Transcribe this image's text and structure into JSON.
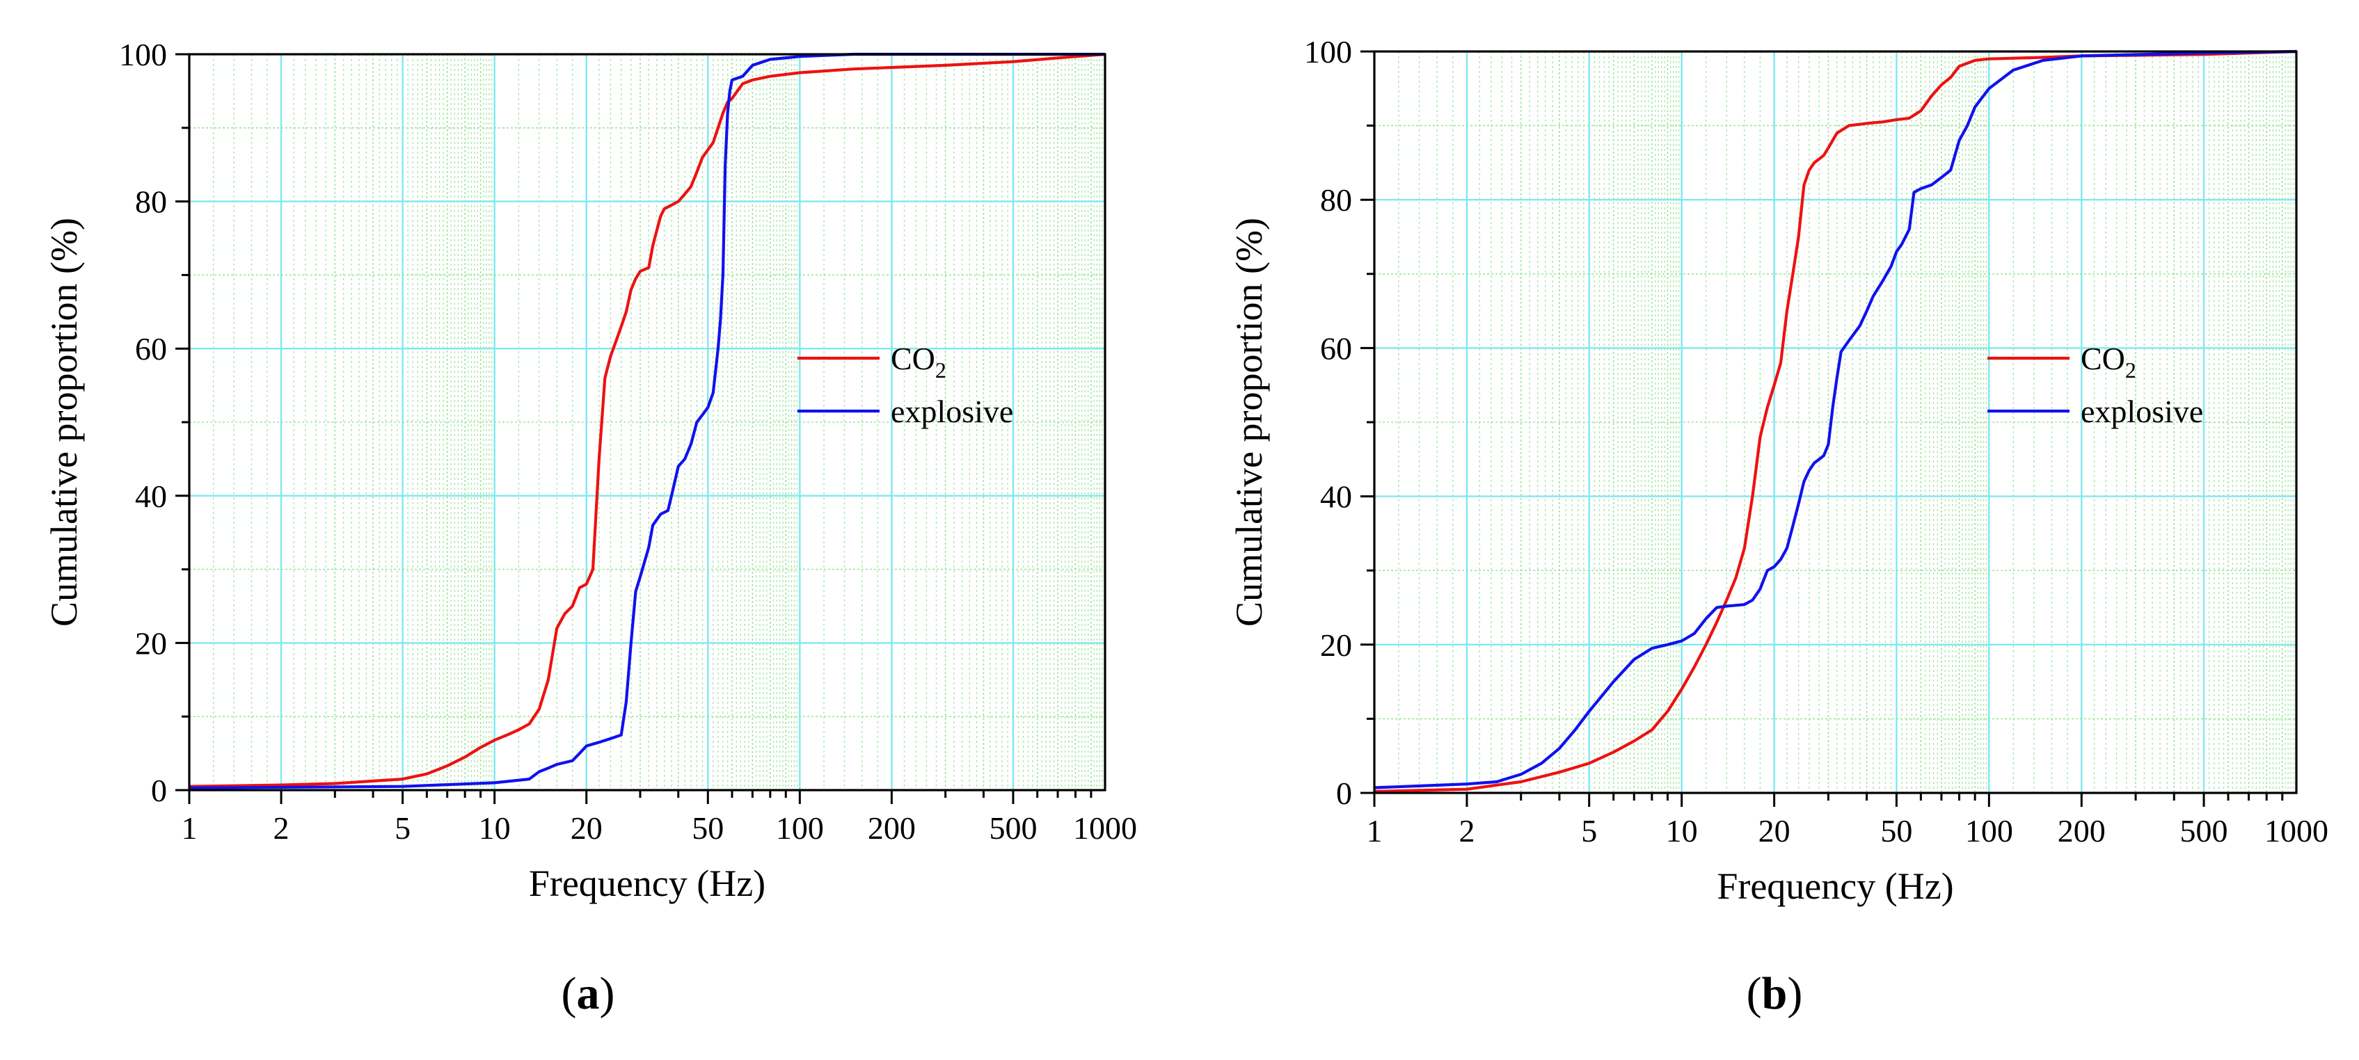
{
  "chart_data": [
    {
      "type": "line",
      "panel_label": {
        "open": "(",
        "letter": "a",
        "close": ")"
      },
      "xlabel": "Frequency (Hz)",
      "ylabel": "Cumulative proportion (%)",
      "xscale": "log",
      "xlim": [
        1,
        1000
      ],
      "ylim": [
        0,
        100
      ],
      "xticks": [
        1,
        2,
        5,
        10,
        20,
        50,
        100,
        200,
        500,
        1000
      ],
      "xtick_labels": [
        "1",
        "2",
        "5",
        "10",
        "20",
        "50",
        "100",
        "200",
        "500",
        "1000"
      ],
      "yticks": [
        0,
        20,
        40,
        60,
        80,
        100
      ],
      "ytick_labels": [
        "0",
        "20",
        "40",
        "60",
        "80",
        "100"
      ],
      "grid": true,
      "legend_position": "right-center",
      "series": [
        {
          "name": "CO₂",
          "legend_label": {
            "base": "CO",
            "sub": "2"
          },
          "color": "#ee1111",
          "x": [
            1,
            2,
            3,
            5,
            6,
            7,
            8,
            9,
            10,
            11,
            12,
            13,
            14,
            15,
            16,
            17,
            18,
            19,
            20,
            21,
            22,
            23,
            24,
            25,
            26,
            27,
            28,
            29,
            30,
            32,
            33,
            35,
            36,
            38,
            40,
            42,
            44,
            46,
            48,
            50,
            52,
            54,
            56,
            58,
            60,
            65,
            70,
            80,
            100,
            150,
            200,
            300,
            500,
            700,
            1000
          ],
          "y": [
            0.5,
            0.7,
            0.9,
            1.5,
            2.2,
            3.3,
            4.5,
            5.8,
            6.8,
            7.5,
            8.2,
            9.0,
            11.0,
            15.0,
            22.0,
            24.0,
            25.0,
            27.5,
            28.0,
            30.0,
            45.0,
            56.0,
            59.0,
            61.0,
            63.0,
            65.0,
            68.0,
            69.5,
            70.5,
            71.0,
            74.0,
            78.0,
            79.0,
            79.5,
            80.0,
            81.0,
            82.0,
            84.0,
            86.0,
            87.0,
            88.0,
            90.0,
            92.0,
            93.5,
            94.0,
            96.0,
            96.5,
            97.0,
            97.5,
            98.0,
            98.2,
            98.5,
            99.0,
            99.5,
            100
          ]
        },
        {
          "name": "explosive",
          "legend_label": {
            "base": "explosive",
            "sub": ""
          },
          "color": "#1111ee",
          "x": [
            1,
            5,
            10,
            13,
            14,
            15,
            16,
            18,
            19,
            20,
            22,
            24,
            26,
            27,
            28,
            29,
            30,
            32,
            33,
            35,
            37,
            38,
            40,
            42,
            44,
            46,
            48,
            50,
            52,
            54,
            55,
            56,
            57,
            58,
            59,
            60,
            65,
            70,
            80,
            100,
            150,
            200,
            1000
          ],
          "y": [
            0.3,
            0.5,
            1.0,
            1.5,
            2.5,
            3.0,
            3.5,
            4.0,
            5.0,
            6.0,
            6.5,
            7.0,
            7.5,
            12.0,
            20.0,
            27.0,
            29.0,
            33.0,
            36.0,
            37.5,
            38.0,
            40.0,
            44.0,
            45.0,
            47.0,
            50.0,
            51.0,
            52.0,
            54.0,
            60.0,
            64.0,
            70.0,
            85.0,
            92.0,
            95.0,
            96.5,
            97.0,
            98.5,
            99.3,
            99.7,
            100,
            100,
            100
          ]
        }
      ]
    },
    {
      "type": "line",
      "panel_label": {
        "open": "(",
        "letter": "b",
        "close": ")"
      },
      "xlabel": "Frequency (Hz)",
      "ylabel": "Cumulative proportion (%)",
      "xscale": "log",
      "xlim": [
        1,
        1000
      ],
      "ylim": [
        0,
        100
      ],
      "xticks": [
        1,
        2,
        5,
        10,
        20,
        50,
        100,
        200,
        500,
        1000
      ],
      "xtick_labels": [
        "1",
        "2",
        "5",
        "10",
        "20",
        "50",
        "100",
        "200",
        "500",
        "1000"
      ],
      "yticks": [
        0,
        20,
        40,
        60,
        80,
        100
      ],
      "ytick_labels": [
        "0",
        "20",
        "40",
        "60",
        "80",
        "100"
      ],
      "grid": true,
      "legend_position": "right-center",
      "series": [
        {
          "name": "CO₂",
          "legend_label": {
            "base": "CO",
            "sub": "2"
          },
          "color": "#ee1111",
          "x": [
            1,
            2,
            3,
            4,
            5,
            6,
            7,
            8,
            9,
            10,
            11,
            12,
            13,
            14,
            15,
            16,
            17,
            18,
            19,
            20,
            21,
            22,
            23,
            24,
            25,
            26,
            27,
            28,
            29,
            30,
            32,
            35,
            40,
            45,
            50,
            55,
            60,
            65,
            70,
            75,
            80,
            90,
            100,
            150,
            200,
            500,
            1000
          ],
          "y": [
            0.2,
            0.5,
            1.5,
            2.8,
            4.0,
            5.5,
            7.0,
            8.5,
            11.0,
            14.0,
            17.0,
            20.0,
            23.0,
            26.0,
            29.0,
            33.0,
            40.0,
            48.0,
            52.0,
            55.0,
            58.0,
            65.0,
            70.0,
            75.0,
            82.0,
            84.0,
            85.0,
            85.5,
            86.0,
            87.0,
            89.0,
            90.0,
            90.3,
            90.5,
            90.8,
            91.0,
            92.0,
            94.0,
            95.5,
            96.5,
            98.0,
            98.8,
            99.0,
            99.2,
            99.4,
            99.6,
            100
          ]
        },
        {
          "name": "explosive",
          "legend_label": {
            "base": "explosive",
            "sub": ""
          },
          "color": "#1111ee",
          "x": [
            1,
            2,
            2.5,
            3,
            3.5,
            4,
            4.5,
            5,
            6,
            7,
            8,
            9,
            10,
            11,
            12,
            13,
            14,
            15,
            16,
            17,
            18,
            19,
            20,
            21,
            22,
            23,
            24,
            25,
            26,
            27,
            28,
            29,
            30,
            31,
            32,
            33,
            35,
            38,
            40,
            42,
            45,
            48,
            50,
            52,
            55,
            57,
            60,
            65,
            70,
            75,
            80,
            85,
            90,
            100,
            120,
            150,
            200,
            500,
            1000
          ],
          "y": [
            0.7,
            1.2,
            1.5,
            2.5,
            4.0,
            6.0,
            8.5,
            11.0,
            15.0,
            18.0,
            19.5,
            20.0,
            20.5,
            21.5,
            23.5,
            25.0,
            25.2,
            25.3,
            25.4,
            26.0,
            27.5,
            30.0,
            30.5,
            31.5,
            33.0,
            36.0,
            39.0,
            42.0,
            43.5,
            44.5,
            45.0,
            45.5,
            47.0,
            52.0,
            56.0,
            59.5,
            61.0,
            63.0,
            65.0,
            67.0,
            69.0,
            71.0,
            73.0,
            74.0,
            76.0,
            81.0,
            81.5,
            82.0,
            83.0,
            84.0,
            88.0,
            90.0,
            92.5,
            95.0,
            97.5,
            98.8,
            99.4,
            99.8,
            100
          ]
        }
      ]
    }
  ]
}
